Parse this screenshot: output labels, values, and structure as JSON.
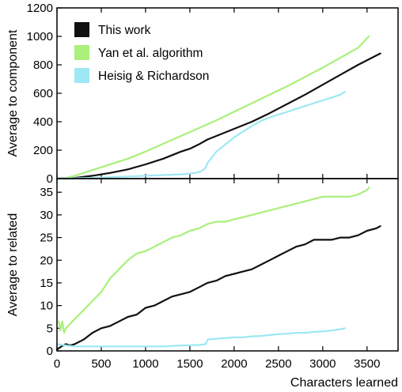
{
  "chart_data": [
    {
      "type": "line",
      "xlabel": "",
      "ylabel": "Average to component",
      "xlim": [
        0,
        3850
      ],
      "ylim": [
        0,
        1200
      ],
      "xticks": [
        0,
        500,
        1000,
        1500,
        2000,
        2500,
        3000,
        3500
      ],
      "yticks": [
        0,
        200,
        400,
        600,
        800,
        1000,
        1200
      ],
      "yticklabels": [
        "0",
        "200",
        "400",
        "600",
        "800",
        "1000",
        "1200"
      ],
      "legend": {
        "position": "top-left",
        "entries": [
          "This work",
          "Yan et al. algorithm",
          "Heisig & Richardson"
        ]
      },
      "series": [
        {
          "name": "This work",
          "color": "#111111",
          "x": [
            0,
            200,
            400,
            600,
            800,
            1000,
            1200,
            1400,
            1500,
            1600,
            1700,
            1800,
            2000,
            2200,
            2400,
            2600,
            2800,
            3000,
            3200,
            3400,
            3650
          ],
          "y": [
            0,
            5,
            20,
            40,
            65,
            100,
            140,
            190,
            210,
            240,
            275,
            300,
            350,
            400,
            460,
            525,
            590,
            660,
            730,
            800,
            880
          ]
        },
        {
          "name": "Yan et al. algorithm",
          "color": "#aaf07a",
          "x": [
            100,
            200,
            500,
            800,
            1000,
            1200,
            1400,
            1600,
            1800,
            2000,
            2200,
            2400,
            2600,
            2800,
            3000,
            3200,
            3400,
            3520
          ],
          "y": [
            5,
            20,
            80,
            140,
            190,
            245,
            300,
            355,
            410,
            470,
            530,
            590,
            650,
            715,
            780,
            850,
            920,
            1000
          ]
        },
        {
          "name": "Heisig & Richardson",
          "color": "#9de8f3",
          "x": [
            0,
            400,
            800,
            1200,
            1400,
            1500,
            1600,
            1650,
            1680,
            1700,
            1750,
            1800,
            1900,
            2000,
            2100,
            2200,
            2300,
            2400,
            2500,
            2600,
            2700,
            2800,
            2900,
            3000,
            3100,
            3200,
            3250
          ],
          "y": [
            0,
            5,
            15,
            25,
            30,
            35,
            45,
            60,
            80,
            110,
            150,
            190,
            240,
            290,
            330,
            370,
            405,
            430,
            450,
            470,
            490,
            510,
            530,
            550,
            570,
            590,
            610
          ]
        }
      ]
    },
    {
      "type": "line",
      "xlabel": "Characters learned",
      "ylabel": "Average to related",
      "xlim": [
        0,
        3850
      ],
      "ylim": [
        0,
        38
      ],
      "xticks": [
        0,
        500,
        1000,
        1500,
        2000,
        2500,
        3000,
        3500
      ],
      "yticks": [
        0,
        5,
        10,
        15,
        20,
        25,
        30,
        35
      ],
      "xticklabels": [
        "0",
        "500",
        "1000",
        "1500",
        "2000",
        "2500",
        "3000",
        "3500"
      ],
      "yticklabels": [
        "0",
        "5",
        "10",
        "15",
        "20",
        "25",
        "30",
        "35"
      ],
      "series": [
        {
          "name": "This work",
          "color": "#111111",
          "x": [
            0,
            50,
            100,
            150,
            200,
            300,
            400,
            500,
            600,
            700,
            800,
            900,
            1000,
            1100,
            1200,
            1300,
            1400,
            1500,
            1600,
            1700,
            1800,
            1900,
            2000,
            2100,
            2200,
            2300,
            2400,
            2500,
            2600,
            2700,
            2800,
            2900,
            3000,
            3100,
            3200,
            3300,
            3400,
            3500,
            3600,
            3650
          ],
          "y": [
            0.3,
            1.0,
            1.5,
            1.2,
            1.5,
            2.5,
            4.0,
            5.0,
            5.5,
            6.5,
            7.5,
            8.0,
            9.5,
            10.0,
            11.0,
            12.0,
            12.5,
            13.0,
            14.0,
            15.0,
            15.5,
            16.5,
            17.0,
            17.5,
            18.0,
            19.0,
            20.0,
            21.0,
            22.0,
            23.0,
            23.5,
            24.5,
            24.5,
            24.5,
            25.0,
            25.0,
            25.5,
            26.5,
            27.0,
            27.5
          ]
        },
        {
          "name": "Yan et al. algorithm",
          "color": "#aaf07a",
          "x": [
            20,
            40,
            60,
            80,
            100,
            150,
            200,
            300,
            400,
            500,
            600,
            700,
            800,
            900,
            1000,
            1100,
            1200,
            1300,
            1400,
            1500,
            1600,
            1700,
            1800,
            1900,
            2000,
            2100,
            2200,
            2300,
            2400,
            2500,
            2600,
            2700,
            2800,
            2900,
            3000,
            3100,
            3200,
            3300,
            3400,
            3500,
            3520
          ],
          "y": [
            6.5,
            4.5,
            6.5,
            4.0,
            5.0,
            6.0,
            7.0,
            9.0,
            11.0,
            13.0,
            16.0,
            18.0,
            20.0,
            21.5,
            22.0,
            23.0,
            24.0,
            25.0,
            25.5,
            26.5,
            27.0,
            28.0,
            28.5,
            28.5,
            29.0,
            29.5,
            30.0,
            30.5,
            31.0,
            31.5,
            32.0,
            32.5,
            33.0,
            33.5,
            34.0,
            34.0,
            34.0,
            34.0,
            34.5,
            35.5,
            36.0
          ]
        },
        {
          "name": "Heisig & Richardson",
          "color": "#9de8f3",
          "x": [
            0,
            100,
            200,
            300,
            500,
            800,
            1000,
            1200,
            1400,
            1600,
            1680,
            1700,
            1800,
            1900,
            2000,
            2100,
            2200,
            2300,
            2400,
            2500,
            2600,
            2700,
            2800,
            2900,
            3000,
            3100,
            3200,
            3250
          ],
          "y": [
            1.5,
            1.2,
            1.0,
            1.0,
            1.0,
            1.0,
            1.0,
            1.0,
            1.2,
            1.3,
            1.5,
            2.5,
            2.7,
            2.8,
            3.0,
            3.0,
            3.2,
            3.3,
            3.5,
            3.7,
            3.8,
            4.0,
            4.0,
            4.2,
            4.3,
            4.5,
            4.8,
            5.0
          ]
        }
      ]
    }
  ]
}
